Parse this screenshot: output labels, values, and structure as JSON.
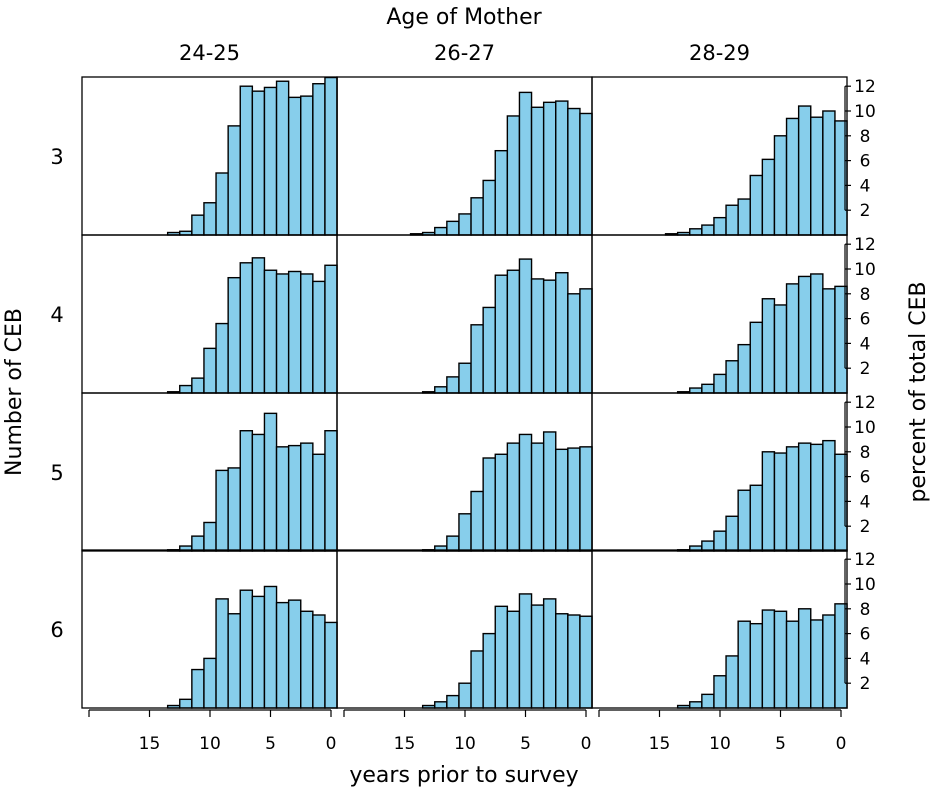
{
  "chart_data": {
    "type": "bar",
    "title": "Age of Mother",
    "xlabel": "years prior to survey",
    "ylabel_left": "Number of CEB",
    "ylabel_right": "percent of total CEB",
    "column_labels": [
      "24-25",
      "26-27",
      "28-29"
    ],
    "row_labels": [
      "3",
      "4",
      "5",
      "6"
    ],
    "x_ticks": [
      "15",
      "10",
      "5",
      "0"
    ],
    "y_ticks": [
      "2",
      "4",
      "6",
      "8",
      "10",
      "12"
    ],
    "xlim": [
      20,
      0
    ],
    "ylim": [
      0,
      13
    ],
    "bar_color": "#87ceeb",
    "x": [
      19,
      18,
      17,
      16,
      15,
      14,
      13,
      12,
      11,
      10,
      9,
      8,
      7,
      6,
      5,
      4,
      3,
      2,
      1,
      0
    ],
    "panels": [
      {
        "row": "3",
        "column": "24-25",
        "values": [
          0,
          0,
          0,
          0,
          0,
          0,
          0.2,
          0.3,
          1.6,
          2.6,
          5.0,
          8.8,
          12.0,
          11.6,
          11.9,
          12.4,
          11.1,
          11.2,
          12.2,
          12.7
        ]
      },
      {
        "row": "3",
        "column": "26-27",
        "values": [
          0,
          0,
          0,
          0,
          0,
          0.1,
          0.2,
          0.6,
          1.1,
          1.7,
          3.0,
          4.4,
          6.8,
          9.6,
          11.5,
          10.3,
          10.7,
          10.8,
          10.2,
          9.8
        ]
      },
      {
        "row": "3",
        "column": "28-29",
        "values": [
          0,
          0,
          0,
          0,
          0,
          0.1,
          0.2,
          0.5,
          0.8,
          1.4,
          2.4,
          2.9,
          4.8,
          6.1,
          8.0,
          9.4,
          10.4,
          9.5,
          10.0,
          9.2
        ]
      },
      {
        "row": "4",
        "column": "24-25",
        "values": [
          0,
          0,
          0,
          0,
          0,
          0,
          0.1,
          0.6,
          1.2,
          3.6,
          5.6,
          9.3,
          10.5,
          10.9,
          9.9,
          9.6,
          9.8,
          9.6,
          9.0,
          10.3
        ]
      },
      {
        "row": "4",
        "column": "26-27",
        "values": [
          0,
          0,
          0,
          0,
          0,
          0,
          0.1,
          0.5,
          1.3,
          2.4,
          5.5,
          6.9,
          9.5,
          9.9,
          10.8,
          9.2,
          9.1,
          9.7,
          8.0,
          8.4
        ]
      },
      {
        "row": "4",
        "column": "28-29",
        "values": [
          0,
          0,
          0,
          0,
          0,
          0,
          0.1,
          0.4,
          0.7,
          1.5,
          2.6,
          3.9,
          5.7,
          7.6,
          7.1,
          8.8,
          9.4,
          9.6,
          8.4,
          8.6
        ]
      },
      {
        "row": "5",
        "column": "24-25",
        "values": [
          0,
          0,
          0,
          0,
          0,
          0,
          0.1,
          0.4,
          1.2,
          2.3,
          6.5,
          6.7,
          9.7,
          9.4,
          11.1,
          8.4,
          8.5,
          8.7,
          7.8,
          9.7
        ]
      },
      {
        "row": "5",
        "column": "26-27",
        "values": [
          0,
          0,
          0,
          0,
          0,
          0,
          0.1,
          0.4,
          1.2,
          3.0,
          4.8,
          7.5,
          7.8,
          8.7,
          9.4,
          8.7,
          9.6,
          8.2,
          8.3,
          8.4
        ]
      },
      {
        "row": "5",
        "column": "28-29",
        "values": [
          0,
          0,
          0,
          0,
          0,
          0,
          0.1,
          0.4,
          0.8,
          1.6,
          2.8,
          4.9,
          5.3,
          8.0,
          7.9,
          8.4,
          8.7,
          8.6,
          8.9,
          7.8
        ]
      },
      {
        "row": "6",
        "column": "24-25",
        "values": [
          0,
          0,
          0,
          0,
          0,
          0,
          0.2,
          0.7,
          3.1,
          4.0,
          8.8,
          7.6,
          9.5,
          9.0,
          9.8,
          8.5,
          8.7,
          7.8,
          7.5,
          6.9
        ]
      },
      {
        "row": "6",
        "column": "26-27",
        "values": [
          0,
          0,
          0,
          0,
          0,
          0,
          0.2,
          0.5,
          1.0,
          2.0,
          4.6,
          6.0,
          8.2,
          7.8,
          9.2,
          8.3,
          8.8,
          7.6,
          7.5,
          7.4
        ]
      },
      {
        "row": "6",
        "column": "28-29",
        "values": [
          0,
          0,
          0,
          0,
          0,
          0,
          0.2,
          0.5,
          1.1,
          2.6,
          4.2,
          7.0,
          6.8,
          7.9,
          7.8,
          7.0,
          8.0,
          7.1,
          7.5,
          8.4
        ]
      }
    ]
  }
}
